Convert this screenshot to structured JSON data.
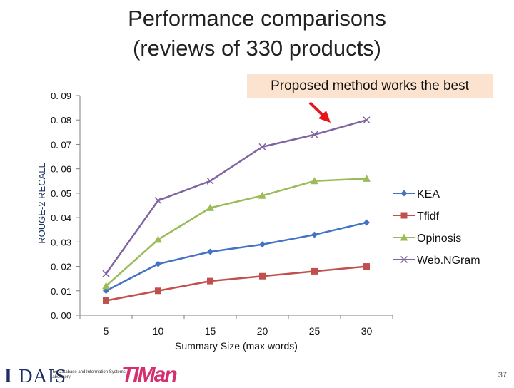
{
  "slide": {
    "title_line1": "Performance comparisons",
    "title_line2": "(reviews of 330 products)",
    "callout": "Proposed method works the best",
    "page_number": "37",
    "logo_left_text": "DAIS",
    "logo_left_small": "The Database and Information Systems Laboratory",
    "logo_right_text": "TIMan",
    "colors": {
      "callout_bg": "#fbe3cf",
      "arrow": "#e8141b"
    }
  },
  "chart_data": {
    "type": "line",
    "title": "",
    "xlabel": "Summary Size (max words)",
    "ylabel": "ROUGE-2 RECALL",
    "x": [
      5,
      10,
      15,
      20,
      25,
      30
    ],
    "x_tick_labels": [
      "5",
      "10",
      "15",
      "20",
      "25",
      "30"
    ],
    "ylim": [
      0,
      0.09
    ],
    "y_ticks": [
      0.0,
      0.01,
      0.02,
      0.03,
      0.04,
      0.05,
      0.06,
      0.07,
      0.08,
      0.09
    ],
    "y_tick_labels": [
      "0. 00",
      "0. 01",
      "0. 02",
      "0. 03",
      "0. 04",
      "0. 05",
      "0. 06",
      "0. 07",
      "0. 08",
      "0. 09"
    ],
    "legend_position": "right",
    "grid": false,
    "series": [
      {
        "name": "KEA",
        "values": [
          0.01,
          0.021,
          0.026,
          0.029,
          0.033,
          0.038
        ],
        "color": "#4472c4",
        "marker": "diamond"
      },
      {
        "name": "Tfidf",
        "values": [
          0.006,
          0.01,
          0.014,
          0.016,
          0.018,
          0.02
        ],
        "color": "#c0504d",
        "marker": "square"
      },
      {
        "name": "Opinosis",
        "values": [
          0.012,
          0.031,
          0.044,
          0.049,
          0.055,
          0.056
        ],
        "color": "#9bbb59",
        "marker": "triangle"
      },
      {
        "name": "Web.NGram",
        "values": [
          0.017,
          0.047,
          0.055,
          0.069,
          0.074,
          0.08
        ],
        "color": "#8064a2",
        "marker": "x"
      }
    ]
  }
}
